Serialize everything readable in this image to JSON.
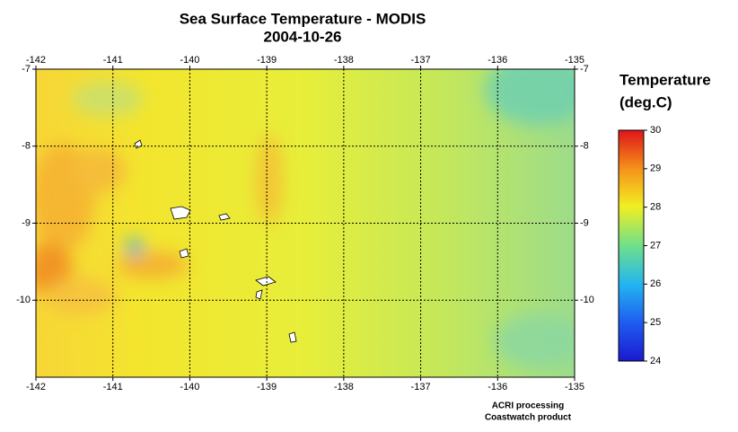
{
  "title": "Sea Surface Temperature - MODIS",
  "date": "2004-10-26",
  "map": {
    "xlim": [
      -142,
      -135
    ],
    "ylim": [
      -7,
      -11
    ],
    "xticks": [
      -142,
      -141,
      -140,
      -139,
      -138,
      -137,
      -136,
      -135
    ],
    "yticks": [
      -7,
      -8,
      -9,
      -10
    ]
  },
  "colorbar": {
    "title_lines": [
      "Temperature",
      "(deg.C)"
    ],
    "lim": [
      24,
      30
    ],
    "ticks": [
      24,
      25,
      26,
      27,
      28,
      29,
      30
    ]
  },
  "credits": [
    "ACRI processing",
    "Coastwatch product"
  ]
}
